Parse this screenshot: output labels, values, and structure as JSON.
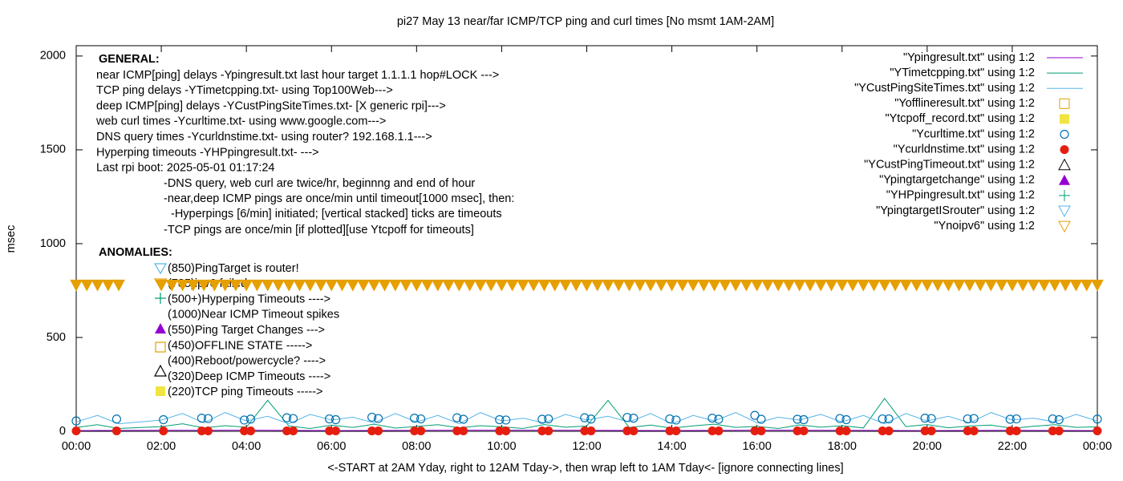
{
  "chart_data": {
    "type": "line",
    "title": "pi27 May 13  near/far ICMP/TCP ping and curl times [No msmt 1AM-2AM]",
    "xlabel": "<-START at 2AM Yday, right to 12AM Tday->, then wrap left to 1AM Tday<- [ignore connecting lines]",
    "ylabel": "msec",
    "xlim": [
      0,
      24
    ],
    "ylim": [
      0,
      2055
    ],
    "xticks": [
      {
        "value": 0,
        "label": "00:00"
      },
      {
        "value": 2,
        "label": "02:00"
      },
      {
        "value": 4,
        "label": "04:00"
      },
      {
        "value": 6,
        "label": "06:00"
      },
      {
        "value": 8,
        "label": "08:00"
      },
      {
        "value": 10,
        "label": "10:00"
      },
      {
        "value": 12,
        "label": "12:00"
      },
      {
        "value": 14,
        "label": "14:00"
      },
      {
        "value": 16,
        "label": "16:00"
      },
      {
        "value": 18,
        "label": "18:00"
      },
      {
        "value": 20,
        "label": "20:00"
      },
      {
        "value": 22,
        "label": "22:00"
      },
      {
        "value": 24,
        "label": "00:00"
      }
    ],
    "yticks": [
      0,
      500,
      1000,
      1500,
      2000
    ],
    "annotations": [
      "GENERAL:",
      "near ICMP[ping] delays -Ypingresult.txt last hour target 1.1.1.1 hop#LOCK --->",
      "TCP ping delays -YTimetcpping.txt- using Top100Web--->",
      "deep ICMP[ping] delays -YCustPingSiteTimes.txt- [X generic rpi]--->",
      "web curl times -Ycurltime.txt- using www.google.com--->",
      "DNS query times -Ycurldnstime.txt- using router? 192.168.1.1--->",
      "Hyperping timeouts -YHPpingresult.txt- --->",
      "Last rpi boot: 2025-05-01 01:17:24",
      "-DNS query, web curl are twice/hr, beginnng and end of hour",
      "-near,deep ICMP pings are once/min until timeout[1000 msec], then:",
      "-Hyperpings [6/min] initiated; [vertical stacked] ticks are timeouts",
      "-TCP pings are once/min [if plotted][use Ytcpoff for timeouts]",
      "ANOMALIES:",
      "(850)PingTarget is router!",
      "(785)ipv6 failed",
      "(500+)Hyperping Timeouts ---->",
      "(1000)Near ICMP Timeout spikes",
      "(550)Ping Target Changes --->",
      "(450)OFFLINE STATE ----->",
      "(400)Reboot/powercycle? ---->",
      "(320)Deep ICMP Timeouts ---->",
      "(220)TCP ping Timeouts ----->"
    ],
    "series": [
      {
        "name": "\"Ypingresult.txt\" using 1:2",
        "color": "#9400d3",
        "style": "line",
        "x": [
          0,
          2,
          4,
          6,
          8,
          10,
          12,
          14,
          16,
          18,
          20,
          22,
          24
        ],
        "values": [
          4,
          5,
          6,
          4,
          5,
          6,
          5,
          4,
          6,
          5,
          4,
          5,
          4
        ]
      },
      {
        "name": "\"YTimetcpping.txt\" using 1:2",
        "color": "#009e73",
        "style": "line",
        "x": [
          0,
          0.5,
          1,
          2,
          2.5,
          3,
          3.5,
          4,
          4.5,
          5,
          5.5,
          6,
          6.5,
          7,
          7.5,
          8,
          8.5,
          9,
          9.5,
          10,
          10.5,
          11,
          11.5,
          12,
          12.5,
          13,
          13.5,
          14,
          14.5,
          15,
          15.5,
          16,
          16.5,
          17,
          17.5,
          18,
          18.5,
          19,
          19.5,
          20,
          20.5,
          21,
          21.5,
          22,
          22.5,
          23,
          23.5,
          24
        ],
        "values": [
          20,
          35,
          15,
          25,
          40,
          18,
          30,
          22,
          165,
          28,
          15,
          33,
          20,
          38,
          17,
          26,
          35,
          19,
          30,
          24,
          15,
          36,
          22,
          28,
          165,
          20,
          33,
          17,
          29,
          38,
          21,
          26,
          15,
          34,
          22,
          30,
          18,
          175,
          25,
          36,
          19,
          28,
          33,
          16,
          27,
          35,
          21,
          24
        ]
      },
      {
        "name": "\"YCustPingSiteTimes.txt\" using 1:2",
        "color": "#56b4e9",
        "style": "line",
        "x": [
          0,
          0.5,
          1,
          2,
          2.5,
          3,
          3.5,
          4,
          4.5,
          5,
          5.5,
          6,
          6.5,
          7,
          7.5,
          8,
          8.5,
          9,
          9.5,
          10,
          10.5,
          11,
          11.5,
          12,
          12.5,
          13,
          13.5,
          14,
          14.5,
          15,
          15.5,
          16,
          16.5,
          17,
          17.5,
          18,
          18.5,
          19,
          19.5,
          20,
          20.5,
          21,
          21.5,
          22,
          22.5,
          23,
          23.5,
          24
        ],
        "values": [
          50,
          85,
          40,
          60,
          95,
          45,
          100,
          55,
          80,
          40,
          90,
          60,
          75,
          45,
          95,
          50,
          85,
          40,
          100,
          55,
          70,
          45,
          90,
          60,
          80,
          50,
          95,
          40,
          85,
          55,
          100,
          45,
          75,
          60,
          90,
          50,
          85,
          40,
          95,
          55,
          80,
          45,
          100,
          60,
          70,
          50,
          90,
          55
        ]
      },
      {
        "name": "\"Yofflineresult.txt\" using 1:2",
        "color": "#e69f00",
        "style": "square",
        "x": [],
        "values": []
      },
      {
        "name": "\"Ytcpoff_record.txt\" using 1:2",
        "color": "#f0e442",
        "style": "fsquare",
        "x": [],
        "values": []
      },
      {
        "name": "\"Ycurltime.txt\" using 1:2",
        "color": "#0072b2",
        "style": "circle",
        "x": [
          0,
          0.95,
          2.05,
          2.95,
          3.1,
          3.95,
          4.1,
          4.95,
          5.1,
          5.95,
          6.1,
          6.95,
          7.1,
          7.95,
          8.1,
          8.95,
          9.1,
          9.95,
          10.1,
          10.95,
          11.1,
          11.95,
          12.1,
          12.95,
          13.1,
          13.95,
          14.1,
          14.95,
          15.1,
          15.95,
          16.1,
          16.95,
          17.1,
          17.95,
          18.1,
          18.95,
          19.1,
          19.95,
          20.1,
          20.95,
          21.1,
          21.95,
          22.1,
          22.95,
          23.1,
          24
        ],
        "values": [
          55,
          65,
          62,
          70,
          68,
          60,
          65,
          72,
          68,
          66,
          62,
          75,
          68,
          70,
          66,
          72,
          64,
          62,
          60,
          64,
          66,
          72,
          65,
          74,
          70,
          66,
          60,
          70,
          64,
          85,
          64,
          64,
          62,
          68,
          62,
          66,
          66,
          70,
          68,
          66,
          68,
          64,
          66,
          66,
          62,
          65
        ]
      },
      {
        "name": "\"Ycurldnstime.txt\" using 1:2",
        "color": "#e51e10",
        "style": "fcircle",
        "x": [
          0,
          0.95,
          2.05,
          2.95,
          3.1,
          3.95,
          4.1,
          4.95,
          5.1,
          5.95,
          6.1,
          6.95,
          7.1,
          7.95,
          8.1,
          8.95,
          9.1,
          9.95,
          10.1,
          10.95,
          11.1,
          11.95,
          12.1,
          12.95,
          13.1,
          13.95,
          14.1,
          14.95,
          15.1,
          15.95,
          16.1,
          16.95,
          17.1,
          17.95,
          18.1,
          18.95,
          19.1,
          19.95,
          20.1,
          20.95,
          21.1,
          21.95,
          22.1,
          22.95,
          23.1,
          24
        ],
        "values": [
          2,
          2,
          2,
          2,
          2,
          2,
          2,
          2,
          2,
          2,
          2,
          2,
          2,
          2,
          2,
          2,
          2,
          2,
          2,
          2,
          2,
          2,
          2,
          2,
          2,
          2,
          2,
          2,
          2,
          2,
          2,
          2,
          2,
          2,
          2,
          2,
          2,
          2,
          2,
          2,
          2,
          2,
          2,
          2,
          2,
          2
        ]
      },
      {
        "name": "\"YCustPingTimeout.txt\" using 1:2",
        "color": "#000000",
        "style": "triangle",
        "x": [],
        "values": []
      },
      {
        "name": "\"Ypingtargetchange\" using 1:2",
        "color": "#9400d3",
        "style": "ftriangle",
        "x": [],
        "values": []
      },
      {
        "name": "\"YHPpingresult.txt\" using 1:2",
        "color": "#009e73",
        "style": "plus",
        "x": [],
        "values": []
      },
      {
        "name": "\"YpingtargetISrouter\" using 1:2",
        "color": "#56b4e9",
        "style": "dtriangle",
        "x": [],
        "values": []
      },
      {
        "name": "\"Ynoipv6\" using 1:2",
        "color": "#e69f00",
        "style": "dtriangle",
        "x": [
          0,
          0.25,
          0.5,
          0.75,
          1,
          2,
          2.25,
          2.5,
          2.75,
          3,
          3.25,
          3.5,
          3.75,
          4,
          4.25,
          4.5,
          4.75,
          5,
          5.25,
          5.5,
          5.75,
          6,
          6.25,
          6.5,
          6.75,
          7,
          7.25,
          7.5,
          7.75,
          8,
          8.25,
          8.5,
          8.75,
          9,
          9.25,
          9.5,
          9.75,
          10,
          10.25,
          10.5,
          10.75,
          11,
          11.25,
          11.5,
          11.75,
          12,
          12.25,
          12.5,
          12.75,
          13,
          13.25,
          13.5,
          13.75,
          14,
          14.25,
          14.5,
          14.75,
          15,
          15.25,
          15.5,
          15.75,
          16,
          16.25,
          16.5,
          16.75,
          17,
          17.25,
          17.5,
          17.75,
          18,
          18.25,
          18.5,
          18.75,
          19,
          19.25,
          19.5,
          19.75,
          20,
          20.25,
          20.5,
          20.75,
          21,
          21.25,
          21.5,
          21.75,
          22,
          22.25,
          22.5,
          22.75,
          23,
          23.25,
          23.5,
          23.75,
          24
        ],
        "values": [
          780,
          780,
          780,
          780,
          780,
          780,
          780,
          780,
          780,
          780,
          780,
          780,
          780,
          780,
          780,
          780,
          780,
          780,
          780,
          780,
          780,
          780,
          780,
          780,
          780,
          780,
          780,
          780,
          780,
          780,
          780,
          780,
          780,
          780,
          780,
          780,
          780,
          780,
          780,
          780,
          780,
          780,
          780,
          780,
          780,
          780,
          780,
          780,
          780,
          780,
          780,
          780,
          780,
          780,
          780,
          780,
          780,
          780,
          780,
          780,
          780,
          780,
          780,
          780,
          780,
          780,
          780,
          780,
          780,
          780,
          780,
          780,
          780,
          780,
          780,
          780,
          780,
          780,
          780,
          780,
          780,
          780,
          780,
          780,
          780,
          780,
          780,
          780,
          780,
          780,
          780,
          780,
          780,
          780
        ]
      }
    ]
  }
}
